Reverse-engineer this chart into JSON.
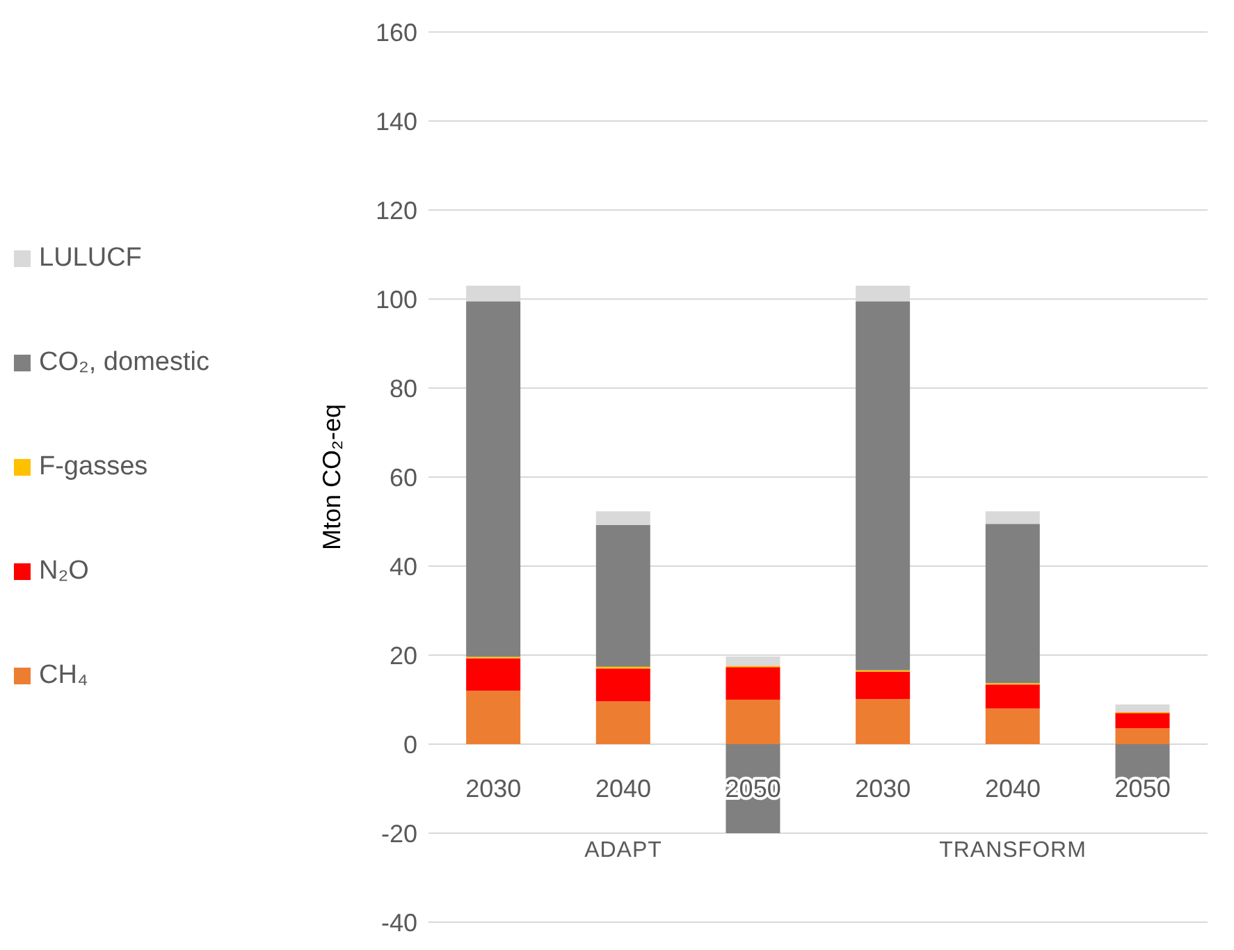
{
  "chart_data": {
    "type": "bar",
    "stacked": true,
    "ylabel": "Mton CO₂-eq",
    "categories": [
      "2030",
      "2040",
      "2050",
      "2030",
      "2040",
      "2050"
    ],
    "annotations": [
      "ADAPT",
      "TRANSFORM"
    ],
    "series": [
      {
        "name": "CH₄",
        "color": "#ed7d31",
        "values": [
          12,
          9.6,
          10,
          10.1,
          8,
          3.6
        ]
      },
      {
        "name": "N₂O",
        "color": "#ff0000",
        "values": [
          7.3,
          7.4,
          7.3,
          6.2,
          5.4,
          3.4
        ]
      },
      {
        "name": "F-gasses",
        "color": "#ffc000",
        "values": [
          0.3,
          0.4,
          0.3,
          0.3,
          0.3,
          0.2
        ]
      },
      {
        "name": "CO₂, domestic",
        "color": "#808080",
        "values": [
          79.9,
          31.8,
          -20,
          82.9,
          35.8,
          -9
        ]
      },
      {
        "name": "LULUCF",
        "color": "#d9d9d9",
        "values": [
          3.5,
          3.1,
          2.1,
          3.5,
          2.8,
          1.7
        ]
      }
    ],
    "ylim": [
      -40,
      160
    ],
    "yticks": [
      -40,
      -20,
      0,
      20,
      40,
      60,
      80,
      100,
      120,
      140,
      160
    ],
    "grid": "y",
    "legend": "left"
  }
}
